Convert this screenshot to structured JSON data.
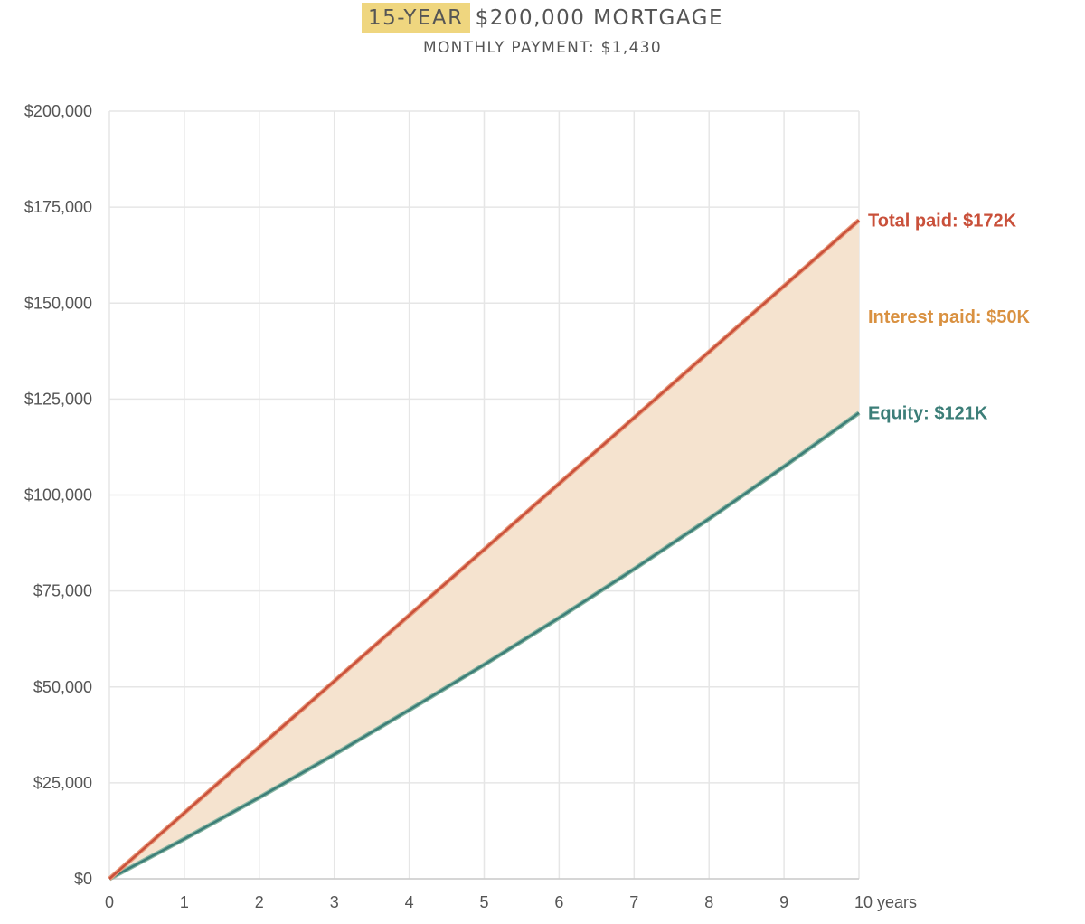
{
  "header": {
    "title_highlight": "15-YEAR",
    "title_rest": "$200,000 MORTGAGE",
    "subtitle": "MONTHLY PAYMENT: $1,430"
  },
  "colors": {
    "total": "#c9503a",
    "interest": "#d99141",
    "equity": "#3c7e78",
    "area": "#f5e3cf",
    "grid": "#e6e6e6",
    "highlight": "#efd67f"
  },
  "chart_data": {
    "type": "area",
    "x": [
      0,
      1,
      2,
      3,
      4,
      5,
      6,
      7,
      8,
      9,
      10
    ],
    "xlim": [
      0,
      10
    ],
    "ylim": [
      0,
      200000
    ],
    "x_tick_labels": [
      "0",
      "1",
      "2",
      "3",
      "4",
      "5",
      "6",
      "7",
      "8",
      "9",
      "10 years"
    ],
    "y_tick_labels": [
      "$0",
      "$25,000",
      "$50,000",
      "$75,000",
      "$100,000",
      "$125,000",
      "$150,000",
      "$175,000",
      "$200,000"
    ],
    "y_tick_values": [
      0,
      25000,
      50000,
      75000,
      100000,
      125000,
      150000,
      175000,
      200000
    ],
    "grid": true,
    "series": [
      {
        "name": "Total paid",
        "values": [
          0,
          17160,
          34320,
          51480,
          68640,
          85800,
          102960,
          120120,
          137280,
          154440,
          171600
        ],
        "label": "Total paid: $172K"
      },
      {
        "name": "Equity",
        "values": [
          0,
          10400,
          21200,
          32400,
          44000,
          55800,
          68000,
          80700,
          93800,
          107400,
          121400
        ],
        "label": "Equity: $121K"
      }
    ],
    "band_label": "Interest paid: $50K"
  }
}
